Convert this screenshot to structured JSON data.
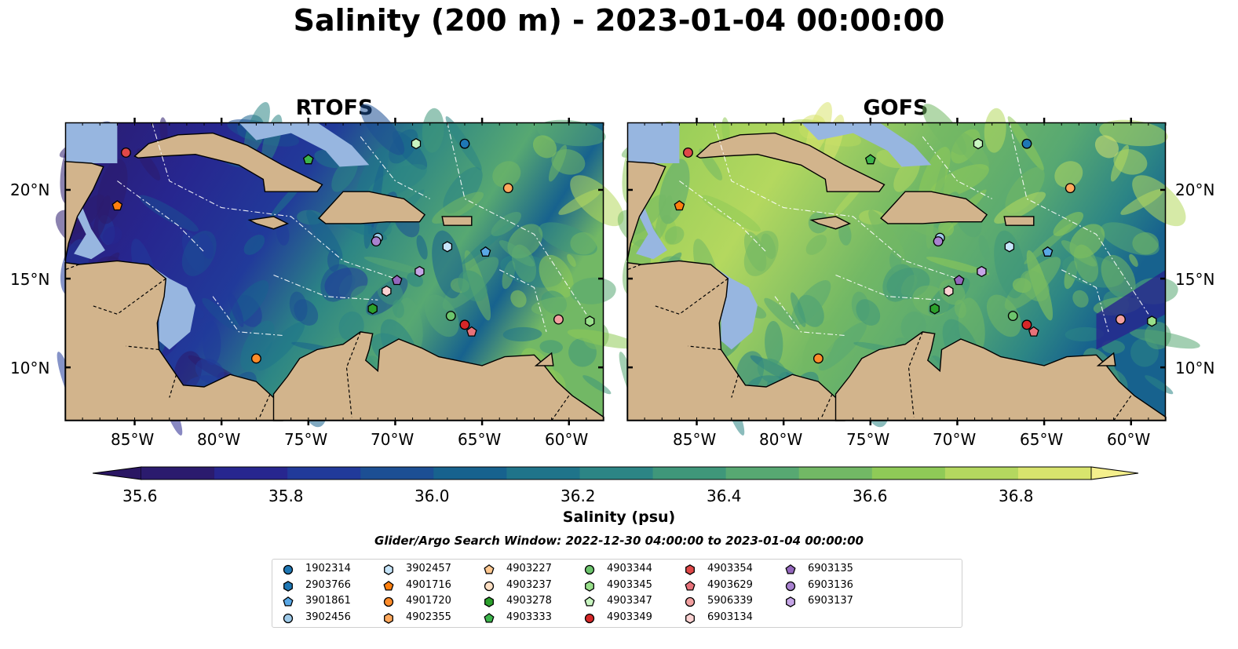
{
  "title": "Salinity (200 m) - 2023-01-04 00:00:00",
  "panels": [
    {
      "title": "RTOFS",
      "theme": "rtofs"
    },
    {
      "title": "GOFS",
      "theme": "gofs"
    }
  ],
  "lat_labels": [
    "20°N",
    "15°N",
    "10°N"
  ],
  "lon_labels": [
    "85°W",
    "80°W",
    "75°W",
    "70°W",
    "65°W",
    "60°W"
  ],
  "colorbar": {
    "label": "Salinity (psu)",
    "ticks": [
      "35.6",
      "35.8",
      "36.0",
      "36.2",
      "36.4",
      "36.6",
      "36.8"
    ],
    "colors": [
      "#2b1b6e",
      "#27268f",
      "#213a9a",
      "#1c4f94",
      "#17628e",
      "#1f748a",
      "#2c8585",
      "#3f977a",
      "#57a872",
      "#72b865",
      "#8fca57",
      "#b4d85f",
      "#d8e46d"
    ],
    "extend_low": "#2a1663",
    "extend_high": "#f4ef8c"
  },
  "colors": {
    "land": "#d2b48c",
    "shallow_water": "#97b6e0",
    "deep": "#2a1663"
  },
  "search_window": "Glider/Argo Search Window: 2022-12-30 04:00:00 to 2023-01-04 00:00:00",
  "legend": [
    {
      "id": "1902314",
      "marker": "circle",
      "color": "#1f77b4"
    },
    {
      "id": "2903766",
      "marker": "hexagon",
      "color": "#1f77b4"
    },
    {
      "id": "3901861",
      "marker": "pentagon",
      "color": "#5aa8e6"
    },
    {
      "id": "3902456",
      "marker": "circle",
      "color": "#9ecae9"
    },
    {
      "id": "3902457",
      "marker": "hexagon",
      "color": "#c6e5fa"
    },
    {
      "id": "4901716",
      "marker": "pentagon",
      "color": "#ff7f0e"
    },
    {
      "id": "4901720",
      "marker": "circle",
      "color": "#ff8c2a"
    },
    {
      "id": "4902355",
      "marker": "hexagon",
      "color": "#ffa85c"
    },
    {
      "id": "4903227",
      "marker": "pentagon",
      "color": "#ffc890"
    },
    {
      "id": "4903237",
      "marker": "circle",
      "color": "#ffe0c4"
    },
    {
      "id": "4903278",
      "marker": "hexagon",
      "color": "#2ca02c"
    },
    {
      "id": "4903333",
      "marker": "pentagon",
      "color": "#3cb44b"
    },
    {
      "id": "4903344",
      "marker": "circle",
      "color": "#6cc46c"
    },
    {
      "id": "4903345",
      "marker": "hexagon",
      "color": "#98df8a"
    },
    {
      "id": "4903347",
      "marker": "pentagon",
      "color": "#c8f5c0"
    },
    {
      "id": "4903349",
      "marker": "circle",
      "color": "#d62728"
    },
    {
      "id": "4903354",
      "marker": "hexagon",
      "color": "#e04848"
    },
    {
      "id": "4903629",
      "marker": "pentagon",
      "color": "#e8727a"
    },
    {
      "id": "5906339",
      "marker": "circle",
      "color": "#f2a0a0"
    },
    {
      "id": "6903134",
      "marker": "hexagon",
      "color": "#fbd2d2"
    },
    {
      "id": "6903135",
      "marker": "pentagon",
      "color": "#9467bd"
    },
    {
      "id": "6903136",
      "marker": "circle",
      "color": "#a982d0"
    },
    {
      "id": "6903137",
      "marker": "hexagon",
      "color": "#c5a5e6"
    }
  ],
  "floats": [
    {
      "lon": -85.5,
      "lat": 22.1,
      "marker": "circle",
      "color": "#e04848"
    },
    {
      "lon": -86.0,
      "lat": 19.1,
      "marker": "pentagon",
      "color": "#ff7f0e"
    },
    {
      "lon": -75.0,
      "lat": 21.7,
      "marker": "pentagon",
      "color": "#3cb44b"
    },
    {
      "lon": -68.8,
      "lat": 22.6,
      "marker": "hexagon",
      "color": "#c8f5c0"
    },
    {
      "lon": -66.0,
      "lat": 22.6,
      "marker": "circle",
      "color": "#1f77b4"
    },
    {
      "lon": -63.5,
      "lat": 20.1,
      "marker": "circle",
      "color": "#ffa85c"
    },
    {
      "lon": -71.0,
      "lat": 17.3,
      "marker": "circle",
      "color": "#9ecae9"
    },
    {
      "lon": -71.1,
      "lat": 17.1,
      "marker": "circle",
      "color": "#a982d0"
    },
    {
      "lon": -67.0,
      "lat": 16.8,
      "marker": "hexagon",
      "color": "#c6e5fa"
    },
    {
      "lon": -64.8,
      "lat": 16.5,
      "marker": "pentagon",
      "color": "#5aa8e6"
    },
    {
      "lon": -69.9,
      "lat": 14.9,
      "marker": "pentagon",
      "color": "#9467bd"
    },
    {
      "lon": -68.6,
      "lat": 15.4,
      "marker": "hexagon",
      "color": "#c5a5e6"
    },
    {
      "lon": -70.5,
      "lat": 14.3,
      "marker": "hexagon",
      "color": "#fbd2d2"
    },
    {
      "lon": -71.3,
      "lat": 13.3,
      "marker": "hexagon",
      "color": "#2ca02c"
    },
    {
      "lon": -66.8,
      "lat": 12.9,
      "marker": "circle",
      "color": "#6cc46c"
    },
    {
      "lon": -66.0,
      "lat": 12.4,
      "marker": "circle",
      "color": "#d62728"
    },
    {
      "lon": -65.6,
      "lat": 12.0,
      "marker": "pentagon",
      "color": "#e8727a"
    },
    {
      "lon": -60.6,
      "lat": 12.7,
      "marker": "circle",
      "color": "#f2a0a0"
    },
    {
      "lon": -58.8,
      "lat": 12.6,
      "marker": "hexagon",
      "color": "#98df8a"
    },
    {
      "lon": -78.0,
      "lat": 10.5,
      "marker": "circle",
      "color": "#ff8c2a"
    }
  ]
}
